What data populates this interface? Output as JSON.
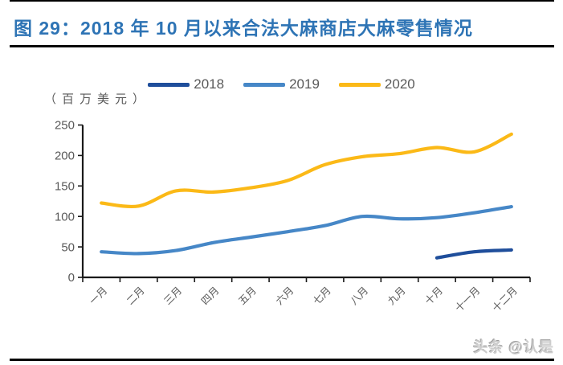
{
  "page": {
    "title": "图 29：2018 年 10 月以来合法大麻商店大麻零售情况",
    "title_color": "#2e74b5",
    "watermark": "头条 @认是"
  },
  "chart_data": {
    "type": "line",
    "title": "图 29：2018 年 10 月以来合法大麻商店大麻零售情况",
    "unit_label": "（百万美元）",
    "categories": [
      "一月",
      "二月",
      "三月",
      "四月",
      "五月",
      "六月",
      "七月",
      "八月",
      "九月",
      "十月",
      "十一月",
      "十二月"
    ],
    "series": [
      {
        "name": "2018",
        "color": "#1f4e9b",
        "values": [
          null,
          null,
          null,
          null,
          null,
          null,
          null,
          null,
          null,
          32,
          42,
          45
        ]
      },
      {
        "name": "2019",
        "color": "#4687c7",
        "values": [
          42,
          39,
          44,
          57,
          66,
          75,
          85,
          100,
          96,
          98,
          106,
          116
        ]
      },
      {
        "name": "2020",
        "color": "#fbb917",
        "values": [
          122,
          117,
          142,
          140,
          147,
          159,
          185,
          198,
          203,
          213,
          206,
          235
        ]
      }
    ],
    "ylim": [
      0,
      250
    ],
    "yticks": [
      0,
      50,
      100,
      150,
      200,
      250
    ],
    "legend_position": "top",
    "grid": false,
    "axis_color": "#1a1a1a",
    "text_color": "#595959"
  }
}
